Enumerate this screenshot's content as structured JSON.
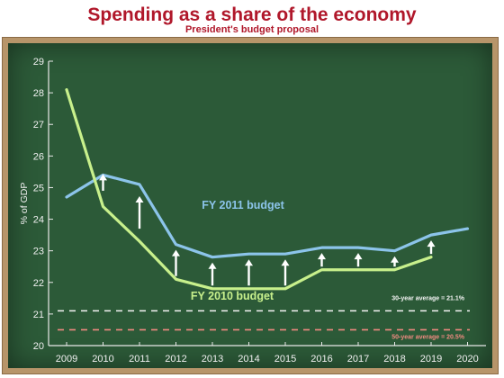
{
  "chart_data": {
    "type": "line",
    "title": "Spending as a share of the economy",
    "subtitle": "President's budget proposal",
    "ylabel": "% of GDP",
    "xlabel": "",
    "ylim": [
      20,
      29
    ],
    "yticks": [
      20,
      21,
      22,
      23,
      24,
      25,
      26,
      27,
      28,
      29
    ],
    "x": [
      "2009",
      "2010",
      "2011",
      "2012",
      "2013",
      "2014",
      "2015",
      "2016",
      "2017",
      "2018",
      "2019",
      "2020"
    ],
    "grid": false,
    "series": [
      {
        "name": "FY 2011 budget",
        "color": "#8cc4ea",
        "values": [
          24.7,
          25.4,
          25.1,
          23.2,
          22.8,
          22.9,
          22.9,
          23.1,
          23.1,
          23.0,
          23.5,
          23.7
        ]
      },
      {
        "name": "FY 2010 budget",
        "color": "#c8f08c",
        "values": [
          28.1,
          24.4,
          23.3,
          22.1,
          21.8,
          21.8,
          21.8,
          22.4,
          22.4,
          22.4,
          22.8,
          null
        ]
      }
    ],
    "reference_lines": [
      {
        "label": "30-year average = 21.1%",
        "value": 21.1,
        "color": "#f4f4f4",
        "style": "dashed"
      },
      {
        "label": "50-year average = 20.5%",
        "value": 20.5,
        "color": "#f08a80",
        "style": "dashed"
      }
    ],
    "arrows": {
      "color": "#ffffff",
      "items": [
        {
          "x": "2010",
          "from": 24.9,
          "to": 25.4
        },
        {
          "x": "2011",
          "from": 23.7,
          "to": 24.7
        },
        {
          "x": "2012",
          "from": 22.2,
          "to": 23.0
        },
        {
          "x": "2013",
          "from": 21.9,
          "to": 22.6
        },
        {
          "x": "2014",
          "from": 21.9,
          "to": 22.7
        },
        {
          "x": "2015",
          "from": 21.9,
          "to": 22.7
        },
        {
          "x": "2016",
          "from": 22.5,
          "to": 22.9
        },
        {
          "x": "2017",
          "from": 22.5,
          "to": 22.9
        },
        {
          "x": "2018",
          "from": 22.5,
          "to": 22.8
        },
        {
          "x": "2019",
          "from": 22.9,
          "to": 23.3
        }
      ]
    }
  },
  "colors": {
    "title": "#b0172a",
    "board": "#2c5a38",
    "frame": "#b7956a",
    "axis": "#e8e8e8"
  }
}
